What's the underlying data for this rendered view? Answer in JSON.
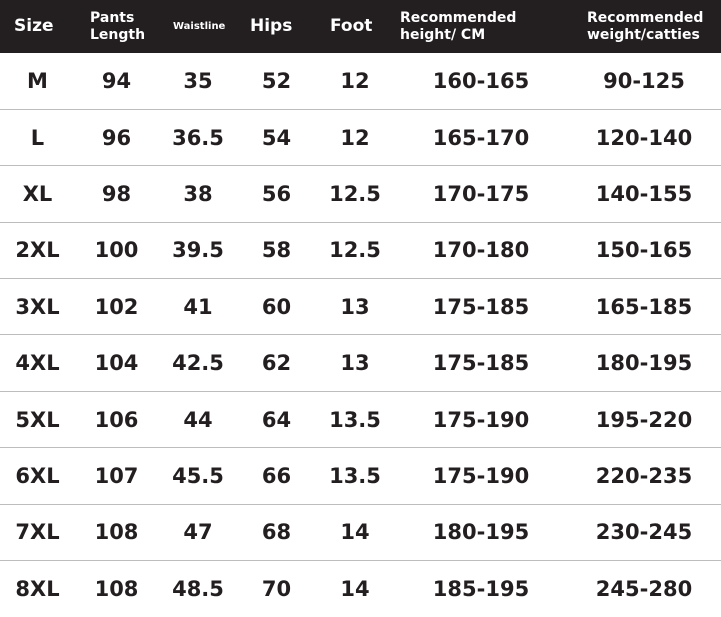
{
  "headers": [
    "Size",
    "Pants Length",
    "Waistline",
    "Hips",
    "Foot",
    "Recommended height/ CM",
    "Recommended weight/catties"
  ],
  "rows": [
    [
      "M",
      "94",
      "35",
      "52",
      "12",
      "160-165",
      "90-125"
    ],
    [
      "L",
      "96",
      "36.5",
      "54",
      "12",
      "165-170",
      "120-140"
    ],
    [
      "XL",
      "98",
      "38",
      "56",
      "12.5",
      "170-175",
      "140-155"
    ],
    [
      "2XL",
      "100",
      "39.5",
      "58",
      "12.5",
      "170-180",
      "150-165"
    ],
    [
      "3XL",
      "102",
      "41",
      "60",
      "13",
      "175-185",
      "165-185"
    ],
    [
      "4XL",
      "104",
      "42.5",
      "62",
      "13",
      "175-185",
      "180-195"
    ],
    [
      "5XL",
      "106",
      "44",
      "64",
      "13.5",
      "175-190",
      "195-220"
    ],
    [
      "6XL",
      "107",
      "45.5",
      "66",
      "13.5",
      "175-190",
      "220-235"
    ],
    [
      "7XL",
      "108",
      "47",
      "68",
      "14",
      "180-195",
      "230-245"
    ],
    [
      "8XL",
      "108",
      "48.5",
      "70",
      "14",
      "185-195",
      "245-280"
    ]
  ],
  "colors": {
    "header_bg": "#231f20",
    "header_text": "#ffffff",
    "divider": "#bdbdbd"
  }
}
